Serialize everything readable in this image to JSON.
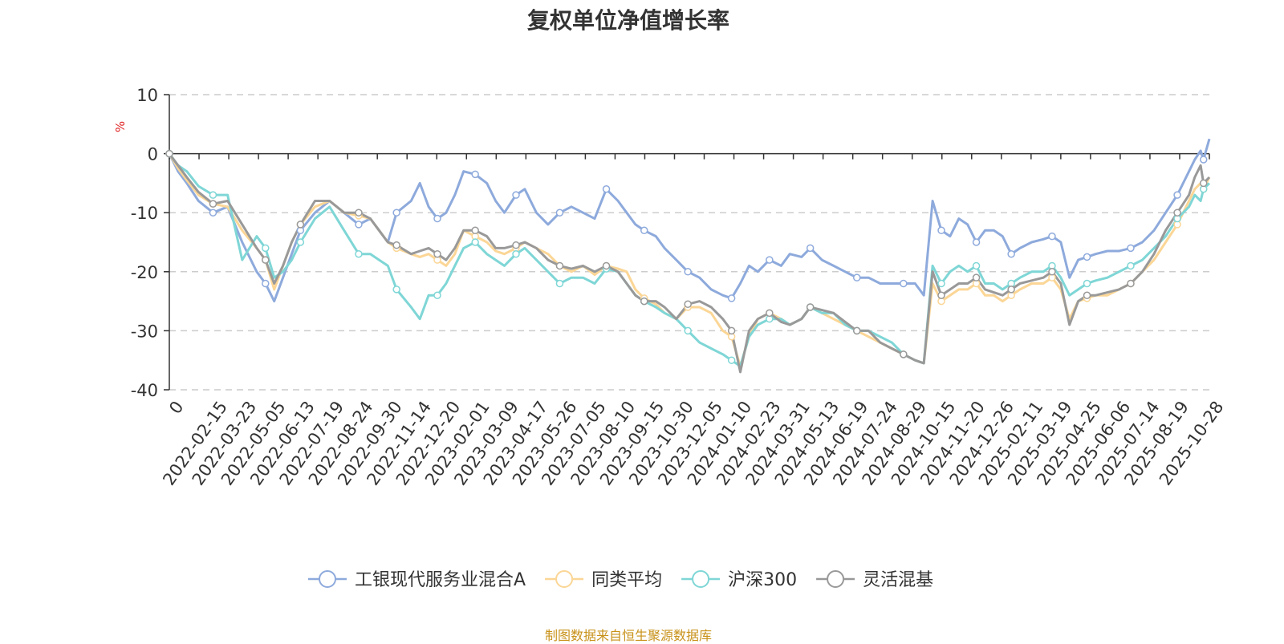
{
  "chart_data": {
    "type": "line",
    "title": "复权单位净值增长率",
    "ylabel": "%",
    "xlabel": "",
    "ylim": [
      -40,
      10
    ],
    "yticks": [
      10,
      0,
      -10,
      -20,
      -30,
      -40
    ],
    "x_tick_labels": [
      "0",
      "2022-02-15",
      "2022-03-23",
      "2022-05-05",
      "2022-06-13",
      "2022-07-19",
      "2022-08-24",
      "2022-09-30",
      "2022-11-14",
      "2022-12-20",
      "2023-02-01",
      "2023-03-09",
      "2023-04-17",
      "2023-05-26",
      "2023-07-05",
      "2023-08-10",
      "2023-09-15",
      "2023-10-30",
      "2023-12-05",
      "2024-01-10",
      "2024-02-23",
      "2024-03-31",
      "2024-05-13",
      "2024-06-19",
      "2024-07-24",
      "2024-08-29",
      "2024-10-15",
      "2024-11-20",
      "2024-12-26",
      "2025-02-11",
      "2025-03-19",
      "2025-04-25",
      "2025-06-06",
      "2025-07-14",
      "2025-08-19",
      "2025-10-28"
    ],
    "x_positions": [
      0,
      1.5,
      2.5,
      3.5,
      4.5,
      5.5,
      6.5,
      7.5,
      8.5,
      9.5,
      10.5,
      11.5,
      12.5,
      13.5,
      14.5,
      15.5,
      16.5,
      17.5,
      18.5,
      19.5,
      20.5,
      21.5,
      22.5,
      23.5,
      24.5,
      25.5,
      26.5,
      27.5,
      28.5,
      29.5,
      30.5,
      31.5,
      32.5,
      33.5,
      34.5,
      35.7
    ],
    "x_range": [
      0,
      35.7
    ],
    "grid": true,
    "legend_position": "bottom",
    "series": [
      {
        "name": "工银现代服务业混合A",
        "color": "#8eaadc",
        "x": [
          0,
          0.3,
          0.6,
          1,
          1.5,
          2,
          2.5,
          3,
          3.3,
          3.6,
          3.9,
          4.2,
          4.5,
          5,
          5.5,
          6,
          6.5,
          6.9,
          7.2,
          7.5,
          7.8,
          8.3,
          8.6,
          8.9,
          9.2,
          9.5,
          9.8,
          10.1,
          10.5,
          10.9,
          11.2,
          11.5,
          11.9,
          12.2,
          12.6,
          13,
          13.4,
          13.8,
          14.2,
          14.6,
          15,
          15.4,
          15.7,
          16,
          16.3,
          16.7,
          17,
          17.4,
          17.8,
          18.2,
          18.6,
          19,
          19.3,
          19.6,
          19.9,
          20.2,
          20.6,
          21,
          21.3,
          21.7,
          22,
          22.4,
          22.8,
          23.2,
          23.6,
          24,
          24.4,
          24.8,
          25.2,
          25.6,
          25.9,
          26.2,
          26.5,
          26.8,
          27.1,
          27.4,
          27.7,
          28,
          28.3,
          28.6,
          28.9,
          29.2,
          29.6,
          30,
          30.3,
          30.6,
          30.9,
          31.2,
          31.5,
          31.8,
          32.2,
          32.6,
          33,
          33.4,
          33.8,
          34.2,
          34.6,
          35,
          35.2,
          35.4,
          35.5,
          35.7
        ],
        "y": [
          0,
          -3,
          -5,
          -8,
          -10,
          -9,
          -15,
          -20,
          -22,
          -25,
          -21,
          -17,
          -13,
          -10,
          -8,
          -10,
          -12,
          -11,
          -13,
          -15,
          -10,
          -8,
          -5,
          -9,
          -11,
          -10,
          -7,
          -3,
          -3.5,
          -5,
          -8,
          -10,
          -7,
          -6,
          -10,
          -12,
          -10,
          -9,
          -10,
          -11,
          -6,
          -8,
          -10,
          -12,
          -13,
          -14,
          -16,
          -18,
          -20,
          -21,
          -23,
          -24,
          -24.5,
          -22,
          -19,
          -20,
          -18,
          -19,
          -17,
          -17.5,
          -16,
          -18,
          -19,
          -20,
          -21,
          -21,
          -22,
          -22,
          -22,
          -22,
          -24,
          -8,
          -13,
          -14,
          -11,
          -12,
          -15,
          -13,
          -13,
          -14,
          -17,
          -16,
          -15,
          -14.5,
          -14,
          -15,
          -21,
          -18,
          -17.5,
          -17,
          -16.5,
          -16.5,
          -16,
          -15,
          -13,
          -10,
          -7,
          -3,
          -1,
          0.5,
          -1,
          2.5
        ]
      },
      {
        "name": "同类平均",
        "color": "#fbd696",
        "x": [
          0,
          0.3,
          0.6,
          1,
          1.5,
          2,
          2.5,
          3,
          3.3,
          3.6,
          3.9,
          4.2,
          4.5,
          5,
          5.5,
          6,
          6.5,
          6.9,
          7.2,
          7.5,
          7.8,
          8.3,
          8.6,
          8.9,
          9.2,
          9.5,
          9.8,
          10.1,
          10.5,
          10.9,
          11.2,
          11.5,
          11.9,
          12.2,
          12.6,
          13,
          13.4,
          13.8,
          14.2,
          14.6,
          15,
          15.4,
          15.7,
          16,
          16.3,
          16.7,
          17,
          17.4,
          17.8,
          18.2,
          18.6,
          19,
          19.3,
          19.6,
          19.9,
          20.2,
          20.6,
          21,
          21.3,
          21.7,
          22,
          22.4,
          22.8,
          23.2,
          23.6,
          24,
          24.4,
          24.8,
          25.2,
          25.6,
          25.9,
          26.2,
          26.5,
          26.8,
          27.1,
          27.4,
          27.7,
          28,
          28.3,
          28.6,
          28.9,
          29.2,
          29.6,
          30,
          30.3,
          30.6,
          30.9,
          31.2,
          31.5,
          31.8,
          32.2,
          32.6,
          33,
          33.4,
          33.8,
          34.2,
          34.6,
          35,
          35.2,
          35.4,
          35.5,
          35.7
        ],
        "y": [
          0,
          -2.5,
          -4.5,
          -7,
          -8.5,
          -9,
          -13,
          -16,
          -18,
          -23,
          -19,
          -15,
          -12,
          -9,
          -8,
          -10,
          -10.5,
          -11,
          -13,
          -15,
          -16,
          -17,
          -17.5,
          -17,
          -18,
          -19,
          -17,
          -13,
          -14,
          -15,
          -16.5,
          -17,
          -16,
          -15,
          -16,
          -17,
          -19,
          -20,
          -19,
          -20.5,
          -19,
          -19.5,
          -20,
          -23,
          -24.5,
          -25.5,
          -27,
          -28,
          -26,
          -26,
          -27,
          -30,
          -31,
          -36,
          -31,
          -28,
          -27,
          -28,
          -29,
          -28,
          -26,
          -27,
          -28,
          -29,
          -30,
          -31,
          -32,
          -33,
          -34,
          -35,
          -35.5,
          -22,
          -25,
          -24,
          -23,
          -23,
          -22,
          -24,
          -24,
          -25,
          -24,
          -23,
          -22,
          -22,
          -21,
          -23,
          -28,
          -25,
          -24.5,
          -24,
          -24,
          -23,
          -22,
          -20,
          -18,
          -15,
          -12,
          -8,
          -6,
          -5,
          -6,
          -4
        ]
      },
      {
        "name": "沪深300",
        "color": "#7fd6d6",
        "x": [
          0,
          0.3,
          0.6,
          1,
          1.5,
          2,
          2.5,
          3,
          3.3,
          3.6,
          3.9,
          4.2,
          4.5,
          5,
          5.5,
          6,
          6.5,
          6.9,
          7.2,
          7.5,
          7.8,
          8.3,
          8.6,
          8.9,
          9.2,
          9.5,
          9.8,
          10.1,
          10.5,
          10.9,
          11.2,
          11.5,
          11.9,
          12.2,
          12.6,
          13,
          13.4,
          13.8,
          14.2,
          14.6,
          15,
          15.4,
          15.7,
          16,
          16.3,
          16.7,
          17,
          17.4,
          17.8,
          18.2,
          18.6,
          19,
          19.3,
          19.6,
          19.9,
          20.2,
          20.6,
          21,
          21.3,
          21.7,
          22,
          22.4,
          22.8,
          23.2,
          23.6,
          24,
          24.4,
          24.8,
          25.2,
          25.6,
          25.9,
          26.2,
          26.5,
          26.8,
          27.1,
          27.4,
          27.7,
          28,
          28.3,
          28.6,
          28.9,
          29.2,
          29.6,
          30,
          30.3,
          30.6,
          30.9,
          31.2,
          31.5,
          31.8,
          32.2,
          32.6,
          33,
          33.4,
          33.8,
          34.2,
          34.6,
          35,
          35.2,
          35.4,
          35.5,
          35.7
        ],
        "y": [
          0,
          -2,
          -3,
          -5.5,
          -7,
          -7,
          -18,
          -14,
          -16,
          -21,
          -20,
          -18,
          -15,
          -11,
          -9,
          -13,
          -17,
          -17,
          -18,
          -19,
          -23,
          -26,
          -28,
          -24,
          -24,
          -22,
          -19,
          -16,
          -15,
          -17,
          -18,
          -19,
          -17,
          -16,
          -18,
          -20,
          -22,
          -21,
          -21,
          -22,
          -19.5,
          -20,
          -22,
          -24,
          -25,
          -26,
          -27,
          -28,
          -30,
          -32,
          -33,
          -34,
          -35,
          -36,
          -31,
          -29,
          -28,
          -28,
          -29,
          -28,
          -26,
          -27,
          -27,
          -29,
          -30,
          -30,
          -31,
          -32,
          -34,
          -35,
          -35.5,
          -19,
          -22,
          -20,
          -19,
          -20,
          -19,
          -22,
          -22,
          -23,
          -22,
          -21,
          -20,
          -20,
          -19,
          -21,
          -24,
          -23,
          -22,
          -21.5,
          -21,
          -20,
          -19,
          -18,
          -16,
          -14,
          -11,
          -9,
          -7,
          -8,
          -6,
          -5
        ]
      },
      {
        "name": "灵活混基",
        "color": "#999999",
        "x": [
          0,
          0.3,
          0.6,
          1,
          1.5,
          2,
          2.5,
          3,
          3.3,
          3.6,
          3.9,
          4.2,
          4.5,
          5,
          5.5,
          6,
          6.5,
          6.9,
          7.2,
          7.5,
          7.8,
          8.3,
          8.6,
          8.9,
          9.2,
          9.5,
          9.8,
          10.1,
          10.5,
          10.9,
          11.2,
          11.5,
          11.9,
          12.2,
          12.6,
          13,
          13.4,
          13.8,
          14.2,
          14.6,
          15,
          15.4,
          15.7,
          16,
          16.3,
          16.7,
          17,
          17.4,
          17.8,
          18.2,
          18.6,
          19,
          19.3,
          19.6,
          19.9,
          20.2,
          20.6,
          21,
          21.3,
          21.7,
          22,
          22.4,
          22.8,
          23.2,
          23.6,
          24,
          24.4,
          24.8,
          25.2,
          25.6,
          25.9,
          26.2,
          26.5,
          26.8,
          27.1,
          27.4,
          27.7,
          28,
          28.3,
          28.6,
          28.9,
          29.2,
          29.6,
          30,
          30.3,
          30.6,
          30.9,
          31.2,
          31.5,
          31.8,
          32.2,
          32.6,
          33,
          33.4,
          33.8,
          34.2,
          34.6,
          35,
          35.2,
          35.4,
          35.5,
          35.7
        ],
        "y": [
          0,
          -2,
          -4,
          -6.5,
          -8.5,
          -8,
          -12,
          -16,
          -18,
          -22,
          -19,
          -15,
          -12,
          -8,
          -8,
          -10,
          -10,
          -11,
          -13,
          -15,
          -15.5,
          -17,
          -16.5,
          -16,
          -17,
          -18,
          -16,
          -13,
          -13,
          -14,
          -16,
          -16,
          -15.5,
          -15,
          -16,
          -18,
          -19,
          -19.5,
          -19,
          -20,
          -19,
          -20,
          -22,
          -24,
          -25,
          -25,
          -26,
          -28,
          -25.5,
          -25,
          -26,
          -28,
          -30,
          -37,
          -30,
          -28,
          -27,
          -28.5,
          -29,
          -28,
          -26,
          -26.5,
          -27,
          -28.5,
          -30,
          -30,
          -32,
          -33,
          -34,
          -35,
          -35.5,
          -20,
          -24,
          -23,
          -22,
          -22,
          -21,
          -23,
          -23.5,
          -24,
          -23,
          -22,
          -21.5,
          -21,
          -20,
          -22,
          -29,
          -25,
          -24,
          -24,
          -23.5,
          -23,
          -22,
          -20,
          -17,
          -13,
          -10,
          -7,
          -4,
          -2,
          -5,
          -4
        ]
      }
    ]
  },
  "source_note": "制图数据来自恒生聚源数据库"
}
